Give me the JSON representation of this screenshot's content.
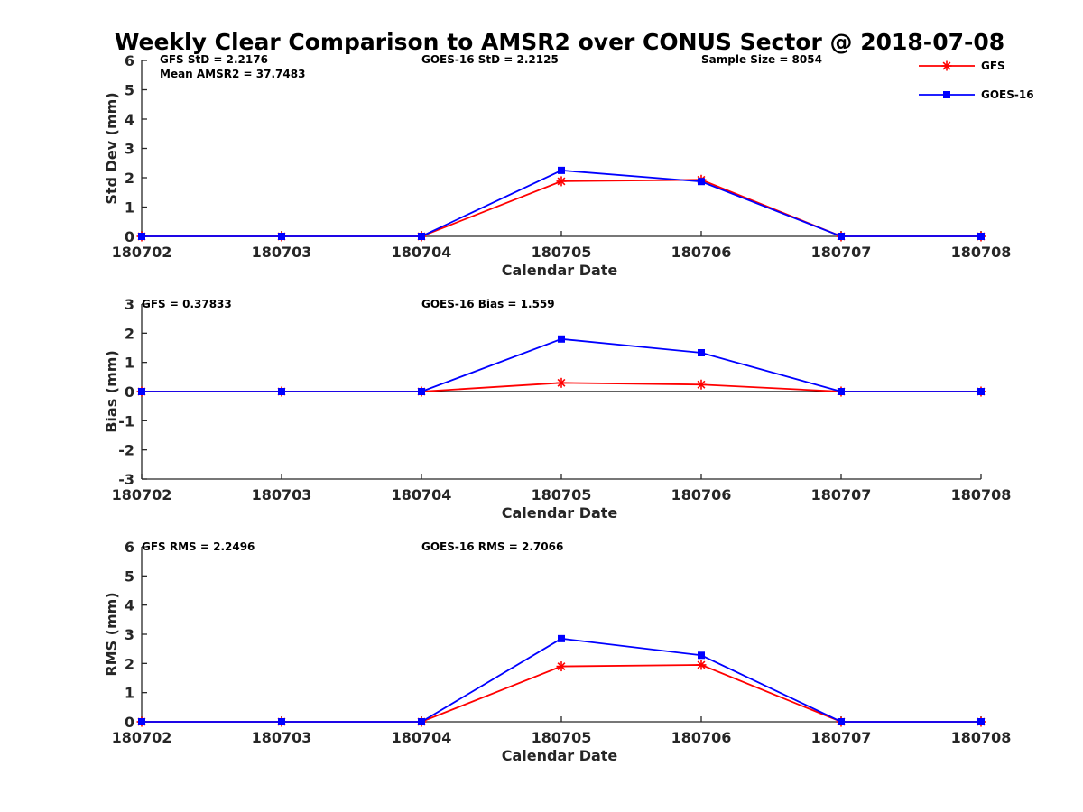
{
  "figure": {
    "title": "Weekly Clear Comparison to AMSR2 over CONUS Sector @ 2018-07-08"
  },
  "legend": {
    "placement": "top-right",
    "entries": [
      {
        "name": "GFS",
        "color": "#ff0000",
        "marker": "asterisk"
      },
      {
        "name": "GOES-16",
        "color": "#0000ff",
        "marker": "square"
      }
    ]
  },
  "chart_data": [
    {
      "type": "line",
      "xlabel": "Calendar Date",
      "ylabel": "Std Dev (mm)",
      "x": [
        "180702",
        "180703",
        "180704",
        "180705",
        "180706",
        "180707",
        "180708"
      ],
      "ylim": [
        0,
        6
      ],
      "yticks": [
        "0",
        "1",
        "2",
        "3",
        "4",
        "5",
        "6"
      ],
      "grid": false,
      "annotations": [
        "GFS StD = 2.2176",
        "Mean AMSR2 = 37.7483",
        "GOES-16 StD = 2.2125",
        "Sample Size = 8054"
      ],
      "series": [
        {
          "name": "GFS",
          "color": "#ff0000",
          "marker": "asterisk",
          "values": [
            0,
            0,
            0,
            1.88,
            1.93,
            0,
            0
          ]
        },
        {
          "name": "GOES-16",
          "color": "#0000ff",
          "marker": "square",
          "values": [
            0,
            0,
            0,
            2.25,
            1.87,
            0,
            0
          ]
        }
      ]
    },
    {
      "type": "line",
      "xlabel": "Calendar Date",
      "ylabel": "Bias (mm)",
      "x": [
        "180702",
        "180703",
        "180704",
        "180705",
        "180706",
        "180707",
        "180708"
      ],
      "ylim": [
        -3,
        3
      ],
      "yticks": [
        "-3",
        "-2",
        "-1",
        "0",
        "1",
        "2",
        "3"
      ],
      "grid": false,
      "zero_line": true,
      "annotations": [
        "GFS = 0.37833",
        "GOES-16 Bias  = 1.559"
      ],
      "series": [
        {
          "name": "GFS",
          "color": "#ff0000",
          "marker": "asterisk",
          "values": [
            0,
            0,
            0,
            0.3,
            0.24,
            0,
            0
          ]
        },
        {
          "name": "GOES-16",
          "color": "#0000ff",
          "marker": "square",
          "values": [
            0,
            0,
            0,
            1.8,
            1.33,
            0,
            0
          ]
        }
      ]
    },
    {
      "type": "line",
      "xlabel": "Calendar Date",
      "ylabel": "RMS (mm)",
      "x": [
        "180702",
        "180703",
        "180704",
        "180705",
        "180706",
        "180707",
        "180708"
      ],
      "ylim": [
        0,
        6
      ],
      "yticks": [
        "0",
        "1",
        "2",
        "3",
        "4",
        "5",
        "6"
      ],
      "grid": false,
      "annotations": [
        "GFS RMS = 2.2496",
        "GOES-16 RMS = 2.7066"
      ],
      "series": [
        {
          "name": "GFS",
          "color": "#ff0000",
          "marker": "asterisk",
          "values": [
            0,
            0,
            0,
            1.9,
            1.95,
            0,
            0
          ]
        },
        {
          "name": "GOES-16",
          "color": "#0000ff",
          "marker": "square",
          "values": [
            0,
            0,
            0,
            2.85,
            2.28,
            0,
            0
          ]
        }
      ]
    }
  ]
}
